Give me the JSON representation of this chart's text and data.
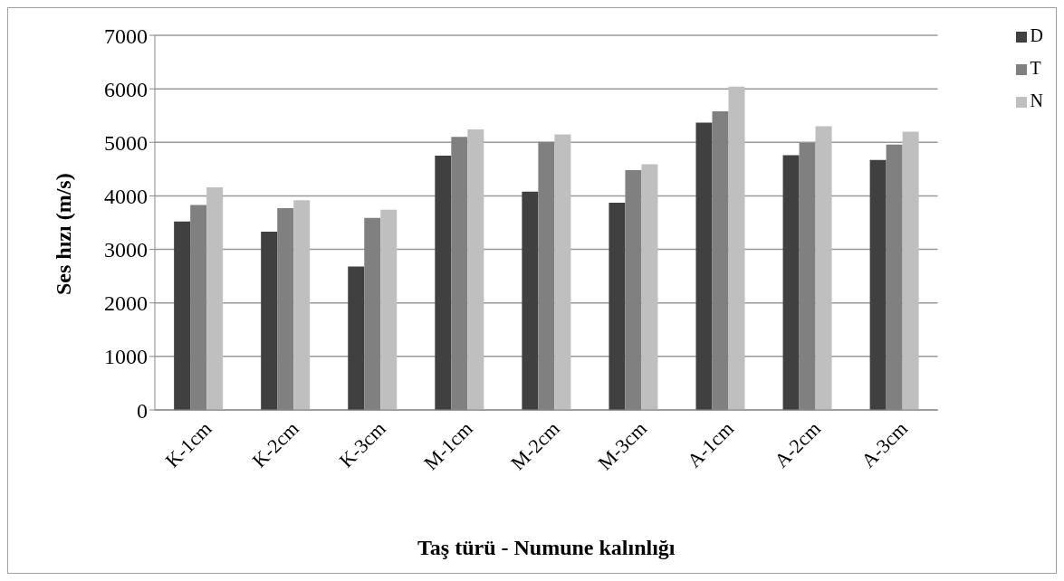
{
  "chart_data": {
    "type": "bar",
    "xlabel": "Taş türü - Numune kalınlığı",
    "ylabel": "Ses hızı (m/s)",
    "categories": [
      "K-1cm",
      "K-2cm",
      "K-3cm",
      "M-1cm",
      "M-2cm",
      "M-3cm",
      "A-1cm",
      "A-2cm",
      "A-3cm"
    ],
    "series": [
      {
        "name": "D",
        "color": "#404040",
        "values": [
          3520,
          3330,
          2680,
          4750,
          4080,
          3870,
          5370,
          4760,
          4670
        ]
      },
      {
        "name": "T",
        "color": "#808080",
        "values": [
          3830,
          3770,
          3590,
          5100,
          5010,
          4480,
          5580,
          4990,
          4960
        ]
      },
      {
        "name": "N",
        "color": "#bfbfbf",
        "values": [
          4160,
          3920,
          3740,
          5240,
          5150,
          4590,
          6040,
          5300,
          5200
        ]
      }
    ],
    "ylim": [
      0,
      7000
    ],
    "yticks": [
      0,
      1000,
      2000,
      3000,
      4000,
      5000,
      6000,
      7000
    ],
    "grid": "y",
    "legend": "top right"
  }
}
